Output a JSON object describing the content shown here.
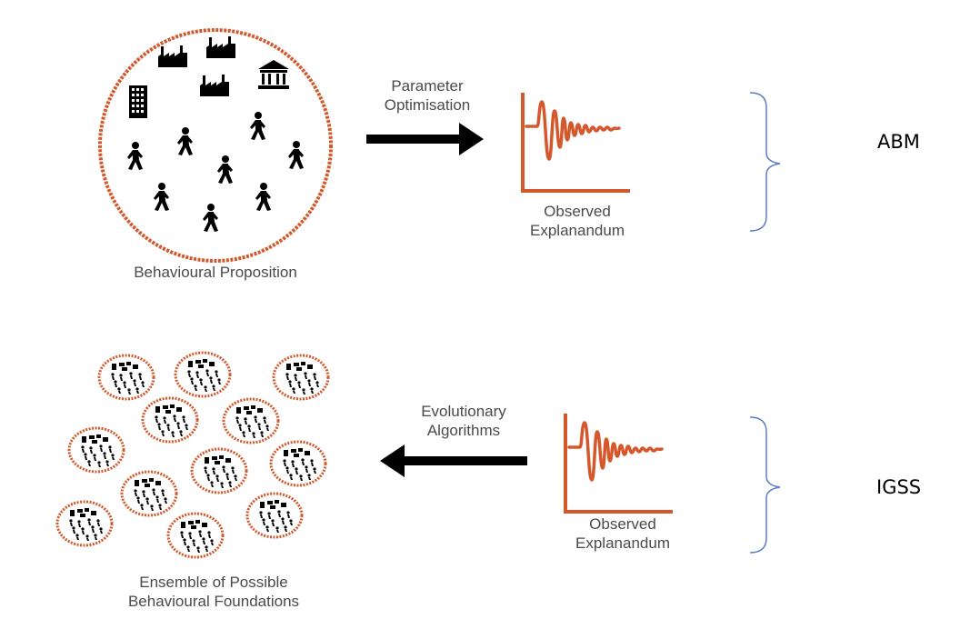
{
  "top_row": {
    "circle_caption": "Behavioural Proposition",
    "arrow_caption": "Parameter\nOptimisation",
    "chart_caption": "Observed\nExplanandum",
    "side_label": "ABM"
  },
  "bottom_row": {
    "ensemble_caption": "Ensemble of Possible\nBehavioural Foundations",
    "arrow_caption": "Evolutionary\nAlgorithms",
    "chart_caption": "Observed\nExplanandum",
    "side_label": "IGSS"
  },
  "colors": {
    "accent_orange": "#d4582c",
    "brace_blue": "#5b7fc7",
    "arrow": "#000000",
    "text_gray": "#4a4a4a"
  },
  "icons": {
    "person": "walking-person-icon",
    "factory": "factory-icon",
    "office": "office-building-icon",
    "bank": "bank-icon"
  }
}
